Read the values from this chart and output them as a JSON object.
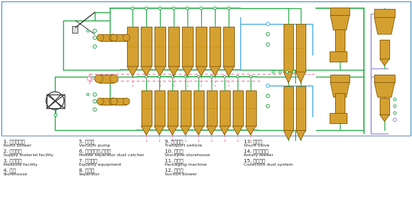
{
  "bg_color": "#ffffff",
  "border_color": "#5599cc",
  "pipe_green": "#22aa44",
  "pipe_blue": "#44aadd",
  "pipe_pink": "#ee88aa",
  "pipe_purple": "#9988cc",
  "vessel_fill": "#d4a030",
  "vessel_stroke": "#8b6010",
  "vessel_line": "#cc8800",
  "figsize": [
    6.0,
    2.92
  ],
  "dpi": 100,
  "legend": [
    [
      "1. 罗茨鼓风机",
      "Roots blower",
      "5. 真空泵",
      "Vacuum pump",
      "9. 运输车辆",
      "Transport vehicle",
      "13. 分路阀",
      "Shunt valve"
    ],
    [
      "2. 送料设备",
      "Supply material facility",
      "6. 中间分离器,除尘器",
      "Middle separator dust catcher",
      "10. 贮存仓",
      "Stockpile storehouse",
      "14. 旋转供料器",
      "Rotary feeder"
    ],
    [
      "3. 计量设备",
      "Measure facility",
      "7. 均料装置",
      "Equality equipment",
      "11. 包装机",
      "Packaging machine",
      "15. 除尘系统",
      "Collection dust system"
    ],
    [
      "4. 料仓",
      "Storehouse",
      "8. 分离器",
      "Separator",
      "12. 引风机",
      "Suction blower",
      "",
      ""
    ]
  ]
}
